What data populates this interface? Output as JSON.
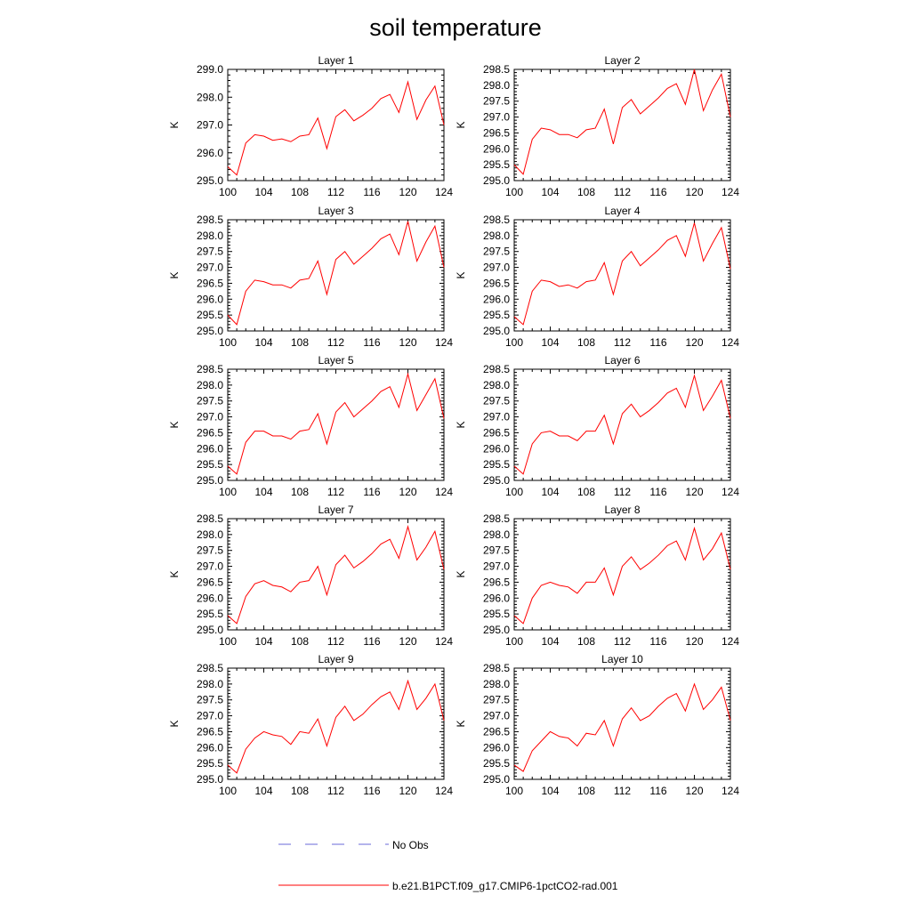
{
  "figure": {
    "title": "soil temperature",
    "legend": [
      {
        "label": "No Obs",
        "color": "#6a6ad8",
        "style": "dashed"
      },
      {
        "label": "b.e21.B1PCT.f09_g17.CMIP6-1pctCO2-rad.001",
        "color": "#ff0000",
        "style": "solid"
      }
    ]
  },
  "chart_data": [
    {
      "type": "line",
      "title": "Layer 1",
      "ylabel": "K",
      "x": [
        100,
        101,
        102,
        103,
        104,
        105,
        106,
        107,
        108,
        109,
        110,
        111,
        112,
        113,
        114,
        115,
        116,
        117,
        118,
        119,
        120,
        121,
        122,
        123,
        124
      ],
      "xlim": [
        100,
        124
      ],
      "xticks": [
        "100",
        "104",
        "108",
        "112",
        "116",
        "120",
        "124"
      ],
      "ylim": [
        295,
        299
      ],
      "yticks": [
        "295.0",
        "296.0",
        "297.0",
        "298.0",
        "299.0"
      ],
      "series": [
        {
          "color": "#ff0000",
          "values": [
            295.5,
            295.2,
            296.35,
            296.65,
            296.6,
            296.45,
            296.5,
            296.4,
            296.6,
            296.65,
            297.25,
            296.15,
            297.3,
            297.55,
            297.15,
            297.35,
            297.6,
            297.95,
            298.1,
            297.45,
            298.55,
            297.2,
            297.9,
            298.4,
            297.0
          ]
        }
      ]
    },
    {
      "type": "line",
      "title": "Layer 2",
      "ylabel": "K",
      "x": [
        100,
        101,
        102,
        103,
        104,
        105,
        106,
        107,
        108,
        109,
        110,
        111,
        112,
        113,
        114,
        115,
        116,
        117,
        118,
        119,
        120,
        121,
        122,
        123,
        124
      ],
      "xlim": [
        100,
        124
      ],
      "xticks": [
        "100",
        "104",
        "108",
        "112",
        "116",
        "120",
        "124"
      ],
      "ylim": [
        295,
        298.5
      ],
      "yticks": [
        "295.0",
        "295.5",
        "296.0",
        "296.5",
        "297.0",
        "297.5",
        "298.0",
        "298.5"
      ],
      "series": [
        {
          "color": "#ff0000",
          "values": [
            295.5,
            295.2,
            296.3,
            296.65,
            296.6,
            296.45,
            296.45,
            296.35,
            296.6,
            296.65,
            297.25,
            296.15,
            297.3,
            297.55,
            297.1,
            297.35,
            297.6,
            297.9,
            298.05,
            297.4,
            298.5,
            297.2,
            297.85,
            298.35,
            297.0
          ]
        }
      ]
    },
    {
      "type": "line",
      "title": "Layer 3",
      "ylabel": "K",
      "x": [
        100,
        101,
        102,
        103,
        104,
        105,
        106,
        107,
        108,
        109,
        110,
        111,
        112,
        113,
        114,
        115,
        116,
        117,
        118,
        119,
        120,
        121,
        122,
        123,
        124
      ],
      "xlim": [
        100,
        124
      ],
      "xticks": [
        "100",
        "104",
        "108",
        "112",
        "116",
        "120",
        "124"
      ],
      "ylim": [
        295,
        298.5
      ],
      "yticks": [
        "295.0",
        "295.5",
        "296.0",
        "296.5",
        "297.0",
        "297.5",
        "298.0",
        "298.5"
      ],
      "series": [
        {
          "color": "#ff0000",
          "values": [
            295.5,
            295.2,
            296.25,
            296.6,
            296.55,
            296.45,
            296.45,
            296.35,
            296.6,
            296.65,
            297.2,
            296.15,
            297.25,
            297.5,
            297.1,
            297.35,
            297.6,
            297.9,
            298.05,
            297.4,
            298.45,
            297.2,
            297.8,
            298.3,
            297.0
          ]
        }
      ]
    },
    {
      "type": "line",
      "title": "Layer 4",
      "ylabel": "K",
      "x": [
        100,
        101,
        102,
        103,
        104,
        105,
        106,
        107,
        108,
        109,
        110,
        111,
        112,
        113,
        114,
        115,
        116,
        117,
        118,
        119,
        120,
        121,
        122,
        123,
        124
      ],
      "xlim": [
        100,
        124
      ],
      "xticks": [
        "100",
        "104",
        "108",
        "112",
        "116",
        "120",
        "124"
      ],
      "ylim": [
        295,
        298.5
      ],
      "yticks": [
        "295.0",
        "295.5",
        "296.0",
        "296.5",
        "297.0",
        "297.5",
        "298.0",
        "298.5"
      ],
      "series": [
        {
          "color": "#ff0000",
          "values": [
            295.45,
            295.2,
            296.25,
            296.6,
            296.55,
            296.4,
            296.45,
            296.35,
            296.55,
            296.6,
            297.15,
            296.15,
            297.2,
            297.5,
            297.05,
            297.3,
            297.55,
            297.85,
            298.0,
            297.35,
            298.4,
            297.2,
            297.75,
            298.25,
            296.95
          ]
        }
      ]
    },
    {
      "type": "line",
      "title": "Layer 5",
      "ylabel": "K",
      "x": [
        100,
        101,
        102,
        103,
        104,
        105,
        106,
        107,
        108,
        109,
        110,
        111,
        112,
        113,
        114,
        115,
        116,
        117,
        118,
        119,
        120,
        121,
        122,
        123,
        124
      ],
      "xlim": [
        100,
        124
      ],
      "xticks": [
        "100",
        "104",
        "108",
        "112",
        "116",
        "120",
        "124"
      ],
      "ylim": [
        295,
        298.5
      ],
      "yticks": [
        "295.0",
        "295.5",
        "296.0",
        "296.5",
        "297.0",
        "297.5",
        "298.0",
        "298.5"
      ],
      "series": [
        {
          "color": "#ff0000",
          "values": [
            295.45,
            295.2,
            296.2,
            296.55,
            296.55,
            296.4,
            296.4,
            296.3,
            296.55,
            296.6,
            297.1,
            296.15,
            297.15,
            297.45,
            297.0,
            297.25,
            297.5,
            297.8,
            297.95,
            297.3,
            298.35,
            297.2,
            297.7,
            298.2,
            296.95
          ]
        }
      ]
    },
    {
      "type": "line",
      "title": "Layer 6",
      "ylabel": "K",
      "x": [
        100,
        101,
        102,
        103,
        104,
        105,
        106,
        107,
        108,
        109,
        110,
        111,
        112,
        113,
        114,
        115,
        116,
        117,
        118,
        119,
        120,
        121,
        122,
        123,
        124
      ],
      "xlim": [
        100,
        124
      ],
      "xticks": [
        "100",
        "104",
        "108",
        "112",
        "116",
        "120",
        "124"
      ],
      "ylim": [
        295,
        298.5
      ],
      "yticks": [
        "295.0",
        "295.5",
        "296.0",
        "296.5",
        "297.0",
        "297.5",
        "298.0",
        "298.5"
      ],
      "series": [
        {
          "color": "#ff0000",
          "values": [
            295.45,
            295.2,
            296.15,
            296.5,
            296.55,
            296.4,
            296.4,
            296.25,
            296.55,
            296.55,
            297.05,
            296.15,
            297.1,
            297.4,
            297.0,
            297.2,
            297.45,
            297.75,
            297.9,
            297.3,
            298.3,
            297.2,
            297.65,
            298.15,
            296.95
          ]
        }
      ]
    },
    {
      "type": "line",
      "title": "Layer 7",
      "ylabel": "K",
      "x": [
        100,
        101,
        102,
        103,
        104,
        105,
        106,
        107,
        108,
        109,
        110,
        111,
        112,
        113,
        114,
        115,
        116,
        117,
        118,
        119,
        120,
        121,
        122,
        123,
        124
      ],
      "xlim": [
        100,
        124
      ],
      "xticks": [
        "100",
        "104",
        "108",
        "112",
        "116",
        "120",
        "124"
      ],
      "ylim": [
        295,
        298.5
      ],
      "yticks": [
        "295.0",
        "295.5",
        "296.0",
        "296.5",
        "297.0",
        "297.5",
        "298.0",
        "298.5"
      ],
      "series": [
        {
          "color": "#ff0000",
          "values": [
            295.45,
            295.2,
            296.05,
            296.45,
            296.55,
            296.4,
            296.35,
            296.2,
            296.5,
            296.55,
            297.0,
            296.1,
            297.05,
            297.35,
            296.95,
            297.15,
            297.4,
            297.7,
            297.85,
            297.25,
            298.25,
            297.2,
            297.6,
            298.1,
            296.9
          ]
        }
      ]
    },
    {
      "type": "line",
      "title": "Layer 8",
      "ylabel": "K",
      "x": [
        100,
        101,
        102,
        103,
        104,
        105,
        106,
        107,
        108,
        109,
        110,
        111,
        112,
        113,
        114,
        115,
        116,
        117,
        118,
        119,
        120,
        121,
        122,
        123,
        124
      ],
      "xlim": [
        100,
        124
      ],
      "xticks": [
        "100",
        "104",
        "108",
        "112",
        "116",
        "120",
        "124"
      ],
      "ylim": [
        295,
        298.5
      ],
      "yticks": [
        "295.0",
        "295.5",
        "296.0",
        "296.5",
        "297.0",
        "297.5",
        "298.0",
        "298.5"
      ],
      "series": [
        {
          "color": "#ff0000",
          "values": [
            295.45,
            295.2,
            296.0,
            296.4,
            296.5,
            296.4,
            296.35,
            296.15,
            296.5,
            296.5,
            296.95,
            296.1,
            297.0,
            297.3,
            296.9,
            297.1,
            297.35,
            297.65,
            297.8,
            297.2,
            298.2,
            297.2,
            297.55,
            298.05,
            296.9
          ]
        }
      ]
    },
    {
      "type": "line",
      "title": "Layer 9",
      "ylabel": "K",
      "x": [
        100,
        101,
        102,
        103,
        104,
        105,
        106,
        107,
        108,
        109,
        110,
        111,
        112,
        113,
        114,
        115,
        116,
        117,
        118,
        119,
        120,
        121,
        122,
        123,
        124
      ],
      "xlim": [
        100,
        124
      ],
      "xticks": [
        "100",
        "104",
        "108",
        "112",
        "116",
        "120",
        "124"
      ],
      "ylim": [
        295,
        298.5
      ],
      "yticks": [
        "295.0",
        "295.5",
        "296.0",
        "296.5",
        "297.0",
        "297.5",
        "298.0",
        "298.5"
      ],
      "series": [
        {
          "color": "#ff0000",
          "values": [
            295.45,
            295.2,
            295.95,
            296.3,
            296.5,
            296.4,
            296.35,
            296.1,
            296.5,
            296.45,
            296.9,
            296.05,
            296.95,
            297.3,
            296.85,
            297.05,
            297.35,
            297.6,
            297.75,
            297.2,
            298.1,
            297.2,
            297.55,
            298.0,
            296.85
          ]
        }
      ]
    },
    {
      "type": "line",
      "title": "Layer 10",
      "ylabel": "K",
      "x": [
        100,
        101,
        102,
        103,
        104,
        105,
        106,
        107,
        108,
        109,
        110,
        111,
        112,
        113,
        114,
        115,
        116,
        117,
        118,
        119,
        120,
        121,
        122,
        123,
        124
      ],
      "xlim": [
        100,
        124
      ],
      "xticks": [
        "100",
        "104",
        "108",
        "112",
        "116",
        "120",
        "124"
      ],
      "ylim": [
        295,
        298.5
      ],
      "yticks": [
        "295.0",
        "295.5",
        "296.0",
        "296.5",
        "297.0",
        "297.5",
        "298.0",
        "298.5"
      ],
      "series": [
        {
          "color": "#ff0000",
          "values": [
            295.45,
            295.25,
            295.9,
            296.2,
            296.5,
            296.35,
            296.3,
            296.05,
            296.45,
            296.4,
            296.85,
            296.05,
            296.9,
            297.25,
            296.85,
            297.0,
            297.3,
            297.55,
            297.7,
            297.15,
            298.0,
            297.2,
            297.5,
            297.9,
            296.85
          ]
        }
      ]
    }
  ]
}
